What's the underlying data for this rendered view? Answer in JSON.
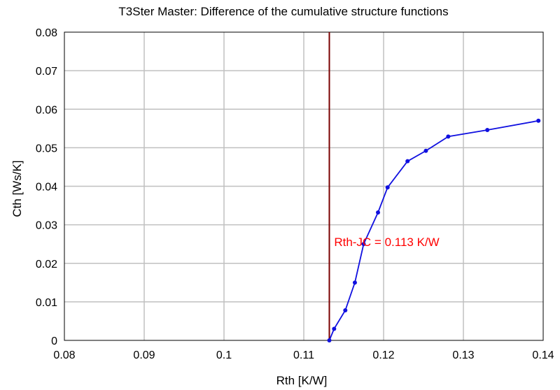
{
  "chart_data": {
    "type": "line",
    "title": "T3Ster Master: Difference of the cumulative structure functions",
    "xlabel": "Rth  [K/W]",
    "ylabel": "Cth  [Ws/K]",
    "xlim": [
      0.08,
      0.14
    ],
    "ylim": [
      0,
      0.08
    ],
    "x_ticks": [
      0.08,
      0.09,
      0.1,
      0.11,
      0.12,
      0.13,
      0.14
    ],
    "x_tick_labels": [
      "0.08",
      "0.09",
      "0.1",
      "0.11",
      "0.12",
      "0.13",
      "0.14"
    ],
    "y_ticks": [
      0,
      0.01,
      0.02,
      0.03,
      0.04,
      0.05,
      0.06,
      0.07,
      0.08
    ],
    "y_tick_labels": [
      "0",
      "0.01",
      "0.02",
      "0.03",
      "0.04",
      "0.05",
      "0.06",
      "0.07",
      "0.08"
    ],
    "grid": true,
    "series": [
      {
        "color": "#1010e0",
        "x": [
          0.1132,
          0.1138,
          0.1152,
          0.1164,
          0.1175,
          0.1193,
          0.1205,
          0.123,
          0.1253,
          0.1281,
          0.133,
          0.1394
        ],
        "y": [
          0.0,
          0.003,
          0.0078,
          0.015,
          0.025,
          0.0332,
          0.0397,
          0.0465,
          0.0492,
          0.0529,
          0.0546,
          0.057
        ]
      }
    ],
    "vline": {
      "x": 0.1132,
      "color": "#7a0000"
    },
    "annotation": {
      "text": "Rth-JC = 0.113 K/W",
      "x": 0.1138,
      "y": 0.0245,
      "color": "#ff0000"
    }
  }
}
